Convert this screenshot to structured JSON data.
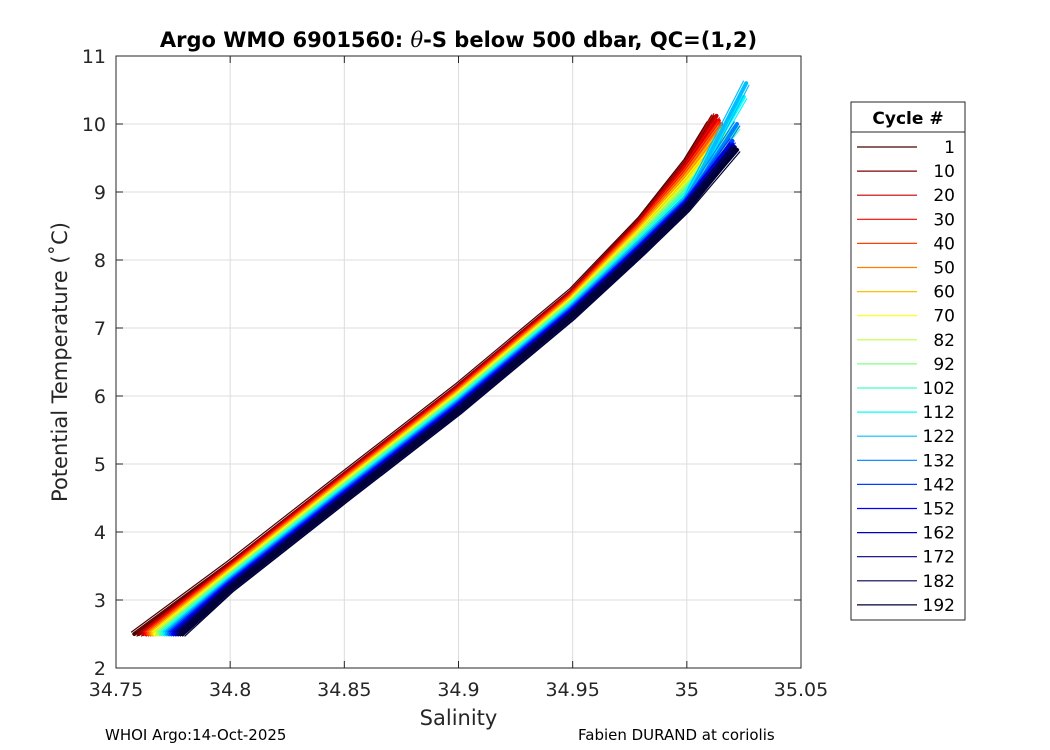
{
  "chart_data": {
    "type": "line",
    "title": "Argo WMO 6901560: θ-S below 500 dbar,  QC=(1,2)",
    "title_parts": {
      "prefix": "Argo WMO 6901560: ",
      "symbol": "θ",
      "suffix": "-S below 500 dbar,  QC=(1,2)"
    },
    "xlabel": "Salinity",
    "ylabel": "Potential Temperature (˚C)",
    "xlim": [
      34.75,
      35.05
    ],
    "ylim": [
      2,
      11
    ],
    "xticks": [
      34.75,
      34.8,
      34.85,
      34.9,
      34.95,
      35,
      35.05
    ],
    "xtick_labels": [
      "34.75",
      "34.8",
      "34.85",
      "34.9",
      "34.95",
      "35",
      "35.05"
    ],
    "yticks": [
      2,
      3,
      4,
      5,
      6,
      7,
      8,
      9,
      10,
      11
    ],
    "ytick_labels": [
      "2",
      "3",
      "4",
      "5",
      "6",
      "7",
      "8",
      "9",
      "10",
      "11"
    ],
    "grid": true,
    "legend_title": "Cycle #",
    "legend_position": "outside-right",
    "series": [
      {
        "name": "1",
        "color": "#4a0000",
        "x": [
          34.758,
          34.8,
          34.85,
          34.9,
          34.95,
          34.98,
          35.0,
          35.01
        ],
        "y": [
          2.5,
          3.54,
          4.85,
          6.15,
          7.55,
          8.6,
          9.45,
          10.0
        ]
      },
      {
        "name": "10",
        "color": "#800000",
        "x": [
          34.76,
          34.8,
          34.85,
          34.9,
          34.95,
          34.98,
          35.0,
          35.012
        ],
        "y": [
          2.5,
          3.5,
          4.82,
          6.12,
          7.52,
          8.58,
          9.42,
          10.1
        ]
      },
      {
        "name": "20",
        "color": "#c00000",
        "x": [
          34.762,
          34.8,
          34.85,
          34.9,
          34.95,
          34.98,
          35.0,
          35.013
        ],
        "y": [
          2.5,
          3.48,
          4.8,
          6.1,
          7.5,
          8.55,
          9.4,
          10.12
        ]
      },
      {
        "name": "30",
        "color": "#ff0000",
        "x": [
          34.763,
          34.8,
          34.85,
          34.9,
          34.95,
          34.98,
          35.0,
          35.014
        ],
        "y": [
          2.5,
          3.46,
          4.78,
          6.08,
          7.48,
          8.52,
          9.35,
          10.05
        ]
      },
      {
        "name": "40",
        "color": "#ff4000",
        "x": [
          34.764,
          34.8,
          34.85,
          34.9,
          34.95,
          34.98,
          35.0,
          35.015
        ],
        "y": [
          2.5,
          3.44,
          4.76,
          6.06,
          7.46,
          8.5,
          9.3,
          10.0
        ]
      },
      {
        "name": "50",
        "color": "#ff8000",
        "x": [
          34.765,
          34.8,
          34.85,
          34.9,
          34.95,
          34.98,
          35.0,
          35.015
        ],
        "y": [
          2.5,
          3.42,
          4.74,
          6.04,
          7.44,
          8.47,
          9.25,
          9.95
        ]
      },
      {
        "name": "60",
        "color": "#ffbf00",
        "x": [
          34.766,
          34.8,
          34.85,
          34.9,
          34.95,
          34.98,
          35.0,
          35.016
        ],
        "y": [
          2.5,
          3.4,
          4.72,
          6.02,
          7.42,
          8.44,
          9.2,
          9.9
        ]
      },
      {
        "name": "70",
        "color": "#ffff00",
        "x": [
          34.767,
          34.8,
          34.85,
          34.9,
          34.95,
          34.98,
          35.0,
          35.017
        ],
        "y": [
          2.5,
          3.38,
          4.7,
          6.0,
          7.4,
          8.41,
          9.15,
          9.85
        ]
      },
      {
        "name": "82",
        "color": "#bfff40",
        "x": [
          34.768,
          34.8,
          34.85,
          34.9,
          34.95,
          34.98,
          35.0,
          35.018
        ],
        "y": [
          2.5,
          3.36,
          4.68,
          5.98,
          7.38,
          8.38,
          9.1,
          9.8
        ]
      },
      {
        "name": "92",
        "color": "#80ff80",
        "x": [
          34.769,
          34.8,
          34.85,
          34.9,
          34.95,
          34.98,
          35.0,
          35.02
        ],
        "y": [
          2.5,
          3.34,
          4.66,
          5.96,
          7.36,
          8.35,
          9.05,
          9.75
        ]
      },
      {
        "name": "102",
        "color": "#40ffbf",
        "x": [
          34.77,
          34.8,
          34.85,
          34.9,
          34.95,
          34.98,
          35.0,
          35.022
        ],
        "y": [
          2.5,
          3.32,
          4.64,
          5.94,
          7.34,
          8.32,
          9.0,
          9.95
        ]
      },
      {
        "name": "112",
        "color": "#00ffff",
        "x": [
          34.771,
          34.8,
          34.85,
          34.9,
          34.95,
          34.98,
          35.0,
          35.025
        ],
        "y": [
          2.5,
          3.3,
          4.62,
          5.92,
          7.32,
          8.29,
          8.95,
          10.4
        ]
      },
      {
        "name": "122",
        "color": "#00bfff",
        "x": [
          34.772,
          34.8,
          34.85,
          34.9,
          34.95,
          34.98,
          35.0,
          35.026
        ],
        "y": [
          2.5,
          3.28,
          4.6,
          5.9,
          7.3,
          8.26,
          8.9,
          10.6
        ]
      },
      {
        "name": "132",
        "color": "#0080ff",
        "x": [
          34.773,
          34.8,
          34.85,
          34.9,
          34.95,
          34.98,
          35.0,
          35.022
        ],
        "y": [
          2.5,
          3.26,
          4.58,
          5.88,
          7.28,
          8.23,
          8.87,
          10.0
        ]
      },
      {
        "name": "142",
        "color": "#0040ff",
        "x": [
          34.774,
          34.8,
          34.85,
          34.9,
          34.95,
          34.98,
          35.0,
          35.02
        ],
        "y": [
          2.5,
          3.24,
          4.56,
          5.86,
          7.26,
          8.2,
          8.85,
          9.75
        ]
      },
      {
        "name": "152",
        "color": "#0000ff",
        "x": [
          34.775,
          34.8,
          34.85,
          34.9,
          34.95,
          34.98,
          35.0,
          35.02
        ],
        "y": [
          2.5,
          3.22,
          4.54,
          5.84,
          7.24,
          8.18,
          8.83,
          9.7
        ]
      },
      {
        "name": "162",
        "color": "#0000bf",
        "x": [
          34.776,
          34.8,
          34.85,
          34.9,
          34.95,
          34.98,
          35.0,
          35.02
        ],
        "y": [
          2.5,
          3.2,
          4.52,
          5.82,
          7.22,
          8.16,
          8.81,
          9.68
        ]
      },
      {
        "name": "172",
        "color": "#000080",
        "x": [
          34.777,
          34.8,
          34.85,
          34.9,
          34.95,
          34.98,
          35.0,
          35.021
        ],
        "y": [
          2.5,
          3.18,
          4.5,
          5.8,
          7.2,
          8.14,
          8.79,
          9.66
        ]
      },
      {
        "name": "182",
        "color": "#000050",
        "x": [
          34.778,
          34.8,
          34.85,
          34.9,
          34.95,
          34.98,
          35.0,
          35.021
        ],
        "y": [
          2.5,
          3.16,
          4.48,
          5.78,
          7.18,
          8.12,
          8.77,
          9.64
        ]
      },
      {
        "name": "192",
        "color": "#000035",
        "x": [
          34.779,
          34.8,
          34.85,
          34.9,
          34.95,
          34.98,
          35.0,
          35.022
        ],
        "y": [
          2.5,
          3.15,
          4.47,
          5.77,
          7.17,
          8.1,
          8.75,
          9.62
        ]
      }
    ]
  },
  "footer": {
    "left": "WHOI Argo:14-Oct-2025",
    "right": "Fabien DURAND at coriolis"
  }
}
